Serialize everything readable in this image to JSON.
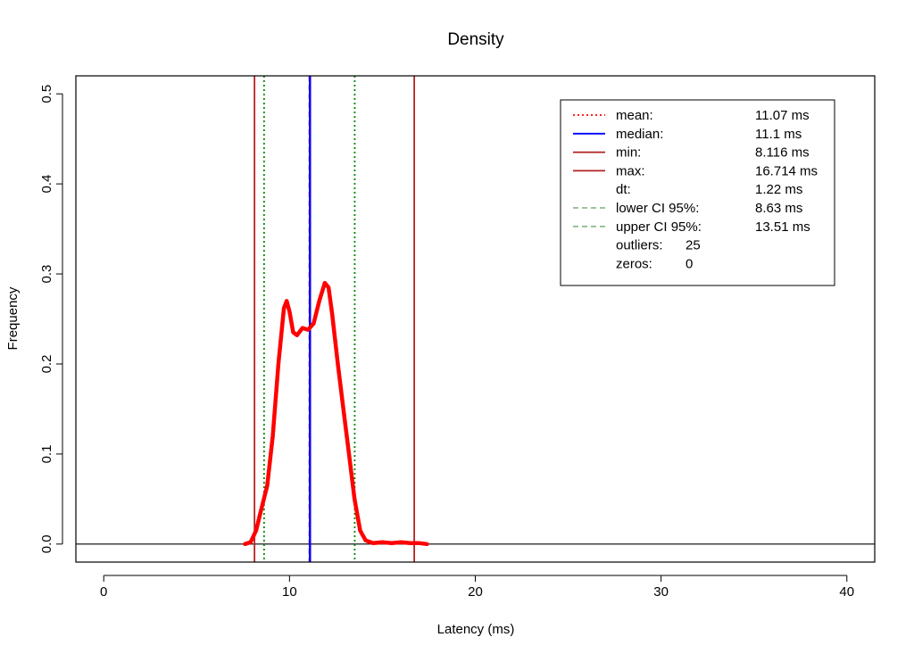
{
  "chart_data": {
    "type": "area",
    "title": "Density",
    "xlabel": "Latency (ms)",
    "ylabel": "Frequency",
    "xlim": [
      -1.5,
      41.5
    ],
    "ylim": [
      -0.02,
      0.52
    ],
    "x_ticks": [
      0,
      10,
      20,
      30,
      40
    ],
    "x_tick_labels": [
      "0",
      "10",
      "20",
      "30",
      "40"
    ],
    "y_ticks": [
      0.0,
      0.1,
      0.2,
      0.3,
      0.4,
      0.5
    ],
    "y_tick_labels": [
      "0.0",
      "0.1",
      "0.2",
      "0.3",
      "0.4",
      "0.5"
    ],
    "grid": false,
    "legend_position": "top-right",
    "density": {
      "name": "density",
      "color": "#ff0000",
      "x": [
        7.6,
        7.9,
        8.2,
        8.5,
        8.8,
        9.1,
        9.4,
        9.7,
        9.85,
        10.0,
        10.2,
        10.4,
        10.7,
        11.0,
        11.3,
        11.6,
        11.9,
        12.1,
        12.3,
        12.6,
        12.9,
        13.2,
        13.5,
        13.8,
        14.1,
        14.5,
        15.0,
        15.5,
        16.0,
        16.5,
        17.0,
        17.4
      ],
      "y": [
        0.0,
        0.002,
        0.015,
        0.04,
        0.065,
        0.12,
        0.2,
        0.262,
        0.27,
        0.258,
        0.235,
        0.232,
        0.24,
        0.238,
        0.245,
        0.27,
        0.29,
        0.285,
        0.255,
        0.2,
        0.15,
        0.1,
        0.05,
        0.015,
        0.004,
        0.001,
        0.002,
        0.001,
        0.002,
        0.001,
        0.001,
        0.0
      ]
    },
    "vlines": [
      {
        "name": "min",
        "x": 8.116,
        "color": "#b22222",
        "style": "solid"
      },
      {
        "name": "lower CI 95%",
        "x": 8.63,
        "color": "#008800",
        "style": "dotted"
      },
      {
        "name": "mean",
        "x": 11.07,
        "color": "#ff0000",
        "style": "dashed"
      },
      {
        "name": "median",
        "x": 11.1,
        "color": "#0000ff",
        "style": "solid"
      },
      {
        "name": "upper CI 95%",
        "x": 13.51,
        "color": "#008800",
        "style": "dotted"
      },
      {
        "name": "max",
        "x": 16.714,
        "color": "#b22222",
        "style": "solid"
      }
    ],
    "hline": {
      "y": 0.0,
      "color": "#000000"
    },
    "legend": [
      {
        "label": "mean:",
        "value": "11.07 ms",
        "color": "#ff0000",
        "style": "dotted"
      },
      {
        "label": "median:",
        "value": "11.1 ms",
        "color": "#0000ff",
        "style": "solid"
      },
      {
        "label": "min:",
        "value": "8.116 ms",
        "color": "#b22222",
        "style": "solid"
      },
      {
        "label": "max:",
        "value": "16.714 ms",
        "color": "#b22222",
        "style": "solid"
      },
      {
        "label": "dt:",
        "value": "1.22 ms",
        "color": "",
        "style": "none"
      },
      {
        "label": "lower CI 95%:",
        "value": "8.63 ms",
        "color": "#8fbc8f",
        "style": "dashed"
      },
      {
        "label": "upper CI 95%:",
        "value": "13.51 ms",
        "color": "#8fbc8f",
        "style": "dashed"
      },
      {
        "label": "outliers:",
        "value": "25",
        "color": "",
        "style": "none",
        "inline": true
      },
      {
        "label": "zeros:",
        "value": "0",
        "color": "",
        "style": "none",
        "inline": true
      }
    ]
  }
}
